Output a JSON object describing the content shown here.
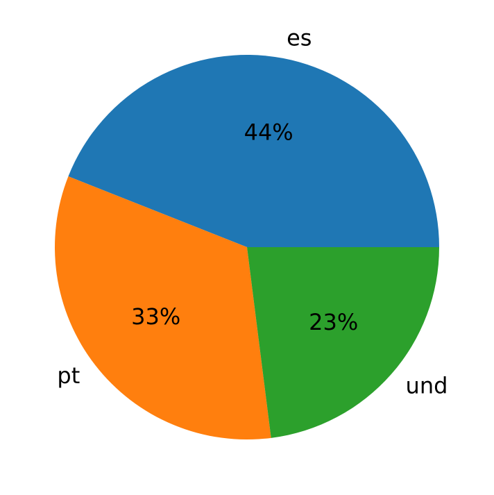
{
  "chart_data": {
    "type": "pie",
    "categories": [
      "es",
      "pt",
      "und"
    ],
    "values": [
      44,
      33,
      23
    ],
    "value_labels": [
      "44%",
      "33%",
      "23%"
    ],
    "colors": [
      "#1f77b4",
      "#ff7f0e",
      "#2ca02c"
    ]
  }
}
